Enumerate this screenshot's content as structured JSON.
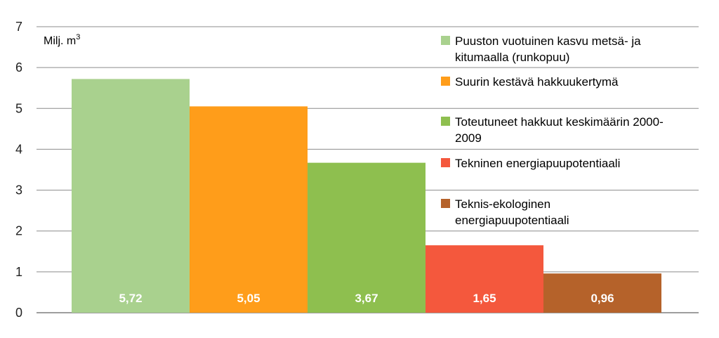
{
  "chart_data": {
    "type": "bar",
    "ylabel": "Milj. m",
    "ylabel_sup": "3",
    "ylim": [
      0,
      7
    ],
    "yticks": [
      "0",
      "1",
      "2",
      "3",
      "4",
      "5",
      "6",
      "7"
    ],
    "grid": true,
    "legend_position": "top-right",
    "series": [
      {
        "name": [
          "Puuston vuotuinen kasvu metsä- ja",
          "kitumaalla (runkopuu)"
        ],
        "value": 5.72,
        "label": "5,72",
        "color": "#a9d18e"
      },
      {
        "name": [
          "Suurin kestävä hakkuukertymä"
        ],
        "value": 5.05,
        "label": "5,05",
        "color": "#ff9d1a"
      },
      {
        "name": [
          "Toteutuneet hakkuut keskimäärin 2000-",
          "2009"
        ],
        "value": 3.67,
        "label": "3,67",
        "color": "#8ebf4f"
      },
      {
        "name": [
          "Tekninen energiapuupotentiaali"
        ],
        "value": 1.65,
        "label": "1,65",
        "color": "#f4583d"
      },
      {
        "name": [
          "Teknis-ekologinen",
          "energiapuupotentiaali"
        ],
        "value": 0.96,
        "label": "0,96",
        "color": "#b5622a"
      }
    ]
  }
}
